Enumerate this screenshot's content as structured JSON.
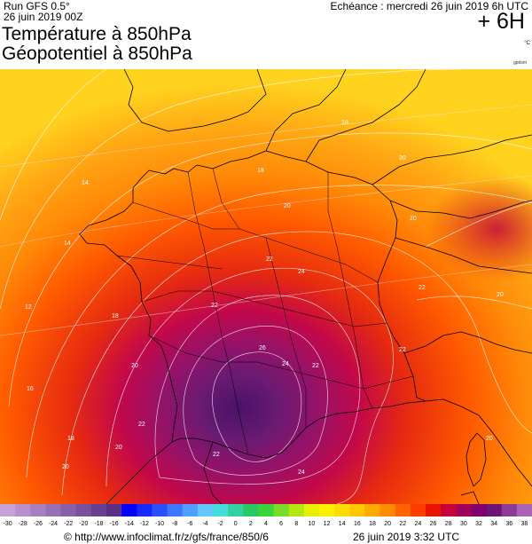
{
  "header": {
    "run": "Run GFS 0.5°",
    "run_date": "26 juin 2019 00Z",
    "title_line1": "Température à 850hPa",
    "title_line2": "Géopotentiel à 850hPa",
    "echeance": "Echéance : mercredi 26 juin 2019 6h UTC",
    "offset": "+ 6H",
    "unit": "°C",
    "credit_small": "gpdsm"
  },
  "map": {
    "colors": {
      "cool_edge": "#ffd21a",
      "warm": "#ff7a00",
      "hot": "#e82000",
      "very_hot": "#b0004a",
      "extreme": "#5a1670",
      "borders": "#000000",
      "isolines": "#ffffff"
    },
    "isotherm_labels": [
      {
        "text": "18"
      },
      {
        "text": "20"
      },
      {
        "text": "20"
      },
      {
        "text": "20"
      },
      {
        "text": "18"
      },
      {
        "text": "14"
      },
      {
        "text": "14"
      },
      {
        "text": "12"
      },
      {
        "text": "18"
      },
      {
        "text": "22"
      },
      {
        "text": "24"
      },
      {
        "text": "22"
      },
      {
        "text": "22"
      },
      {
        "text": "26"
      },
      {
        "text": "24"
      },
      {
        "text": "22"
      },
      {
        "text": "20"
      },
      {
        "text": "20"
      },
      {
        "text": "16"
      },
      {
        "text": "18"
      },
      {
        "text": "20"
      },
      {
        "text": "22"
      },
      {
        "text": "20"
      },
      {
        "text": "22"
      },
      {
        "text": "20"
      },
      {
        "text": "24"
      },
      {
        "text": "22"
      }
    ]
  },
  "scale": {
    "labels": [
      "-30",
      "-28",
      "-26",
      "-24",
      "-22",
      "-20",
      "-18",
      "-16",
      "-14",
      "-12",
      "-10",
      "-8",
      "-6",
      "-4",
      "-2",
      "0",
      "2",
      "4",
      "6",
      "8",
      "10",
      "12",
      "14",
      "16",
      "18",
      "20",
      "22",
      "24",
      "26",
      "28",
      "30",
      "32",
      "34",
      "36",
      "38"
    ],
    "colors": [
      "#c8a0d8",
      "#b890cc",
      "#a880c0",
      "#9870b4",
      "#8860a8",
      "#78509c",
      "#684090",
      "#5a3084",
      "#0000ff",
      "#1428ff",
      "#2850ff",
      "#3c78ff",
      "#50a0ff",
      "#64c8ff",
      "#46dcdc",
      "#32d2a0",
      "#28c864",
      "#3cd23c",
      "#78dc28",
      "#b4e614",
      "#e6f000",
      "#fff000",
      "#ffdc00",
      "#ffc800",
      "#ffaa00",
      "#ff8c00",
      "#ff6400",
      "#ff3c00",
      "#e61400",
      "#c8003c",
      "#a0005a",
      "#82006e",
      "#6e1478",
      "#8c3c96",
      "#aa64b4"
    ]
  },
  "footer": {
    "url": "© http://www.infoclimat.fr/z/gfs/france/850/6",
    "time": "26 juin 2019   3:32 UTC"
  }
}
